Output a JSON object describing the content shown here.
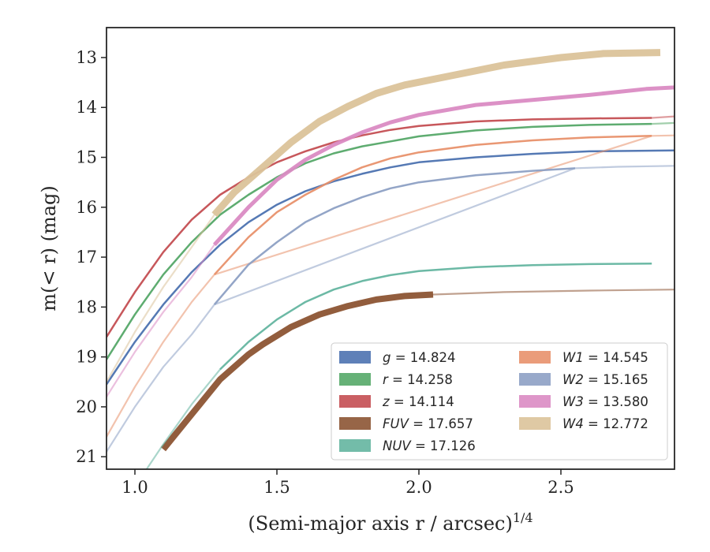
{
  "chart_data": {
    "type": "line",
    "xlabel": "(Semi-major axis r / arcsec)",
    "xlabel_exponent": "1/4",
    "ylabel": "m(< r) (mag)",
    "xlim": [
      0.9,
      2.9
    ],
    "ylim": [
      21.25,
      12.4
    ],
    "y_inverted": true,
    "grid": false,
    "legend_position": "lower-right",
    "x_ticks": [
      "1.0",
      "1.5",
      "2.0",
      "2.5"
    ],
    "y_ticks": [
      "13",
      "14",
      "15",
      "16",
      "17",
      "18",
      "19",
      "20",
      "21"
    ],
    "series": [
      {
        "name": "g = 14.824",
        "var": "g",
        "value": "14.824",
        "color": "#4c72b0",
        "solid_x": [
          0.9,
          1.0,
          1.1,
          1.2,
          1.3,
          1.4,
          1.5,
          1.6,
          1.7,
          1.8,
          1.9,
          2.0,
          2.2,
          2.4,
          2.6,
          2.9
        ],
        "solid_y": [
          19.55,
          18.7,
          17.95,
          17.3,
          16.75,
          16.3,
          15.95,
          15.68,
          15.48,
          15.33,
          15.2,
          15.1,
          15.0,
          14.93,
          14.88,
          14.86
        ],
        "fade_x": [],
        "fade_y": [],
        "width": 2.5
      },
      {
        "name": "r = 14.258",
        "var": "r",
        "value": "14.258",
        "color": "#55a868",
        "solid_x": [
          0.9,
          1.0,
          1.1,
          1.2,
          1.3,
          1.4,
          1.5,
          1.6,
          1.7,
          1.8,
          1.9,
          2.0,
          2.2,
          2.4,
          2.6,
          2.82
        ],
        "solid_y": [
          19.05,
          18.15,
          17.35,
          16.7,
          16.15,
          15.75,
          15.4,
          15.12,
          14.92,
          14.78,
          14.68,
          14.58,
          14.46,
          14.39,
          14.35,
          14.33
        ],
        "fade_x": [
          2.82,
          2.9
        ],
        "fade_y": [
          14.33,
          14.31
        ],
        "width": 2.5
      },
      {
        "name": "z = 14.114",
        "var": "z",
        "value": "14.114",
        "color": "#c44e52",
        "solid_x": [
          0.9,
          1.0,
          1.1,
          1.2,
          1.3,
          1.4,
          1.5,
          1.6,
          1.7,
          1.8,
          1.9,
          2.0,
          2.2,
          2.4,
          2.6,
          2.82
        ],
        "solid_y": [
          18.6,
          17.7,
          16.9,
          16.25,
          15.75,
          15.4,
          15.1,
          14.88,
          14.7,
          14.56,
          14.45,
          14.37,
          14.28,
          14.24,
          14.22,
          14.21
        ],
        "fade_x": [
          2.82,
          2.9
        ],
        "fade_y": [
          14.21,
          14.18
        ],
        "width": 2.5
      },
      {
        "name": "FUV = 17.657",
        "var": "FUV",
        "value": "17.657",
        "color": "#8c5433",
        "solid_x": [
          1.1,
          1.2,
          1.3,
          1.4,
          1.45,
          1.55,
          1.65,
          1.75,
          1.85,
          1.95,
          2.05
        ],
        "solid_y": [
          20.85,
          20.15,
          19.45,
          18.95,
          18.75,
          18.4,
          18.15,
          17.98,
          17.85,
          17.78,
          17.75
        ],
        "fade_x": [
          2.05,
          2.3,
          2.6,
          2.9
        ],
        "fade_y": [
          17.75,
          17.7,
          17.67,
          17.65
        ],
        "width": 8
      },
      {
        "name": "NUV = 17.126",
        "var": "NUV",
        "value": "17.126",
        "color": "#64b5a0",
        "solid_x": [
          1.3,
          1.4,
          1.5,
          1.6,
          1.7,
          1.8,
          1.9,
          2.0,
          2.2,
          2.4,
          2.6,
          2.82
        ],
        "solid_y": [
          19.25,
          18.7,
          18.25,
          17.9,
          17.65,
          17.48,
          17.36,
          17.28,
          17.2,
          17.16,
          17.14,
          17.13
        ],
        "fade_x": [
          0.9,
          1.0,
          1.1,
          1.2,
          1.3
        ],
        "fade_y": [
          22.4,
          21.6,
          20.75,
          19.95,
          19.25
        ],
        "width": 2.5
      },
      {
        "name": "W1 = 14.545",
        "var": "W1",
        "value": "14.545",
        "color": "#e8916b",
        "solid_x": [
          1.28,
          1.4,
          1.5,
          1.6,
          1.7,
          1.8,
          1.9,
          2.0,
          2.2,
          2.4,
          2.6,
          2.82
        ],
        "solid_y": [
          17.35,
          16.6,
          16.1,
          15.75,
          15.45,
          15.2,
          15.02,
          14.9,
          14.75,
          14.66,
          14.6,
          14.57
        ],
        "fade_x": [
          0.9,
          1.0,
          1.1,
          1.2,
          1.28,
          2.82,
          2.9
        ],
        "fade_y": [
          20.6,
          19.6,
          18.7,
          17.9,
          17.35,
          14.57,
          14.56
        ],
        "width": 2.5
      },
      {
        "name": "W2 = 15.165",
        "var": "W2",
        "value": "15.165",
        "color": "#8da0c4",
        "solid_x": [
          1.28,
          1.4,
          1.5,
          1.6,
          1.7,
          1.8,
          1.9,
          2.0,
          2.2,
          2.4,
          2.55
        ],
        "solid_y": [
          17.95,
          17.15,
          16.7,
          16.3,
          16.02,
          15.8,
          15.62,
          15.5,
          15.36,
          15.27,
          15.22
        ],
        "fade_x": [
          0.9,
          1.0,
          1.1,
          1.2,
          1.28,
          2.55,
          2.7,
          2.9
        ],
        "fade_y": [
          20.9,
          20.0,
          19.2,
          18.55,
          17.95,
          15.22,
          15.19,
          15.17
        ],
        "width": 2.5
      },
      {
        "name": "W3 = 13.580",
        "var": "W3",
        "value": "13.580",
        "color": "#da8bc3",
        "solid_x": [
          1.28,
          1.4,
          1.5,
          1.6,
          1.7,
          1.8,
          1.9,
          2.0,
          2.2,
          2.4,
          2.6,
          2.8,
          2.9
        ],
        "solid_y": [
          16.75,
          16.0,
          15.45,
          15.05,
          14.75,
          14.5,
          14.3,
          14.15,
          13.95,
          13.85,
          13.75,
          13.63,
          13.6
        ],
        "fade_x": [
          0.9,
          1.0,
          1.1,
          1.2,
          1.28
        ],
        "fade_y": [
          19.8,
          18.9,
          18.1,
          17.4,
          16.75
        ],
        "width": 5
      },
      {
        "name": "W4 = 12.772",
        "var": "W4",
        "value": "12.772",
        "color": "#dbc39a",
        "solid_x": [
          1.28,
          1.35,
          1.45,
          1.55,
          1.65,
          1.75,
          1.85,
          1.95,
          2.1,
          2.3,
          2.5,
          2.65,
          2.85
        ],
        "solid_y": [
          16.15,
          15.7,
          15.2,
          14.7,
          14.28,
          13.98,
          13.72,
          13.55,
          13.38,
          13.15,
          13.0,
          12.92,
          12.9
        ],
        "fade_x": [
          0.9,
          1.0,
          1.1,
          1.2,
          1.28
        ],
        "fade_y": [
          19.5,
          18.5,
          17.6,
          16.8,
          16.15
        ],
        "width": 9
      }
    ]
  }
}
